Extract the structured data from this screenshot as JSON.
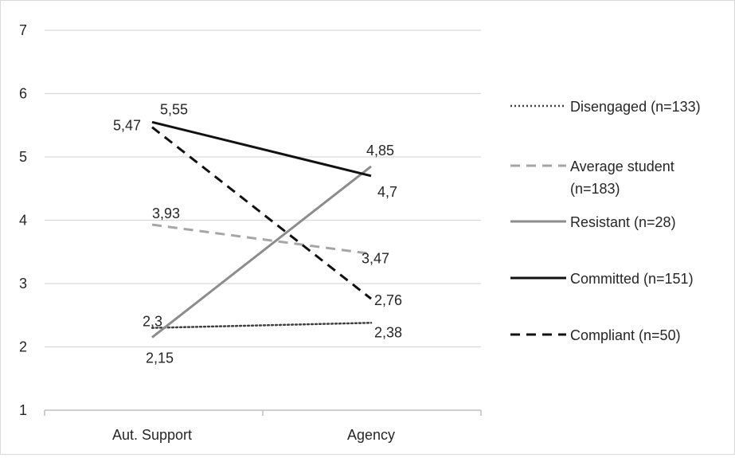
{
  "chart_data": {
    "type": "line",
    "categories": [
      "Aut. Support",
      "Agency"
    ],
    "ylim": [
      1,
      7
    ],
    "yticks": [
      1,
      2,
      3,
      4,
      5,
      6,
      7
    ],
    "grid": true,
    "legend_position": "right",
    "series": [
      {
        "name": "Disengaged (n=133)",
        "values": [
          2.3,
          2.38
        ],
        "labels": [
          "2,3",
          "2,38"
        ],
        "color": "#404040",
        "style": "dotted"
      },
      {
        "name": "Average student (n=183)",
        "values": [
          3.93,
          3.47
        ],
        "labels": [
          "3,93",
          "3,47"
        ],
        "color": "#a6a6a6",
        "style": "dashed"
      },
      {
        "name": "Resistant (n=28)",
        "values": [
          2.15,
          4.85
        ],
        "labels": [
          "2,15",
          "4,85"
        ],
        "color": "#8c8c8c",
        "style": "solid"
      },
      {
        "name": "Committed (n=151)",
        "values": [
          5.55,
          4.7
        ],
        "labels": [
          "5,55",
          "4,7"
        ],
        "color": "#111111",
        "style": "solid"
      },
      {
        "name": "Compliant (n=50)",
        "values": [
          5.47,
          2.76
        ],
        "labels": [
          "5,47",
          "2,76"
        ],
        "color": "#111111",
        "style": "dashed"
      }
    ]
  }
}
